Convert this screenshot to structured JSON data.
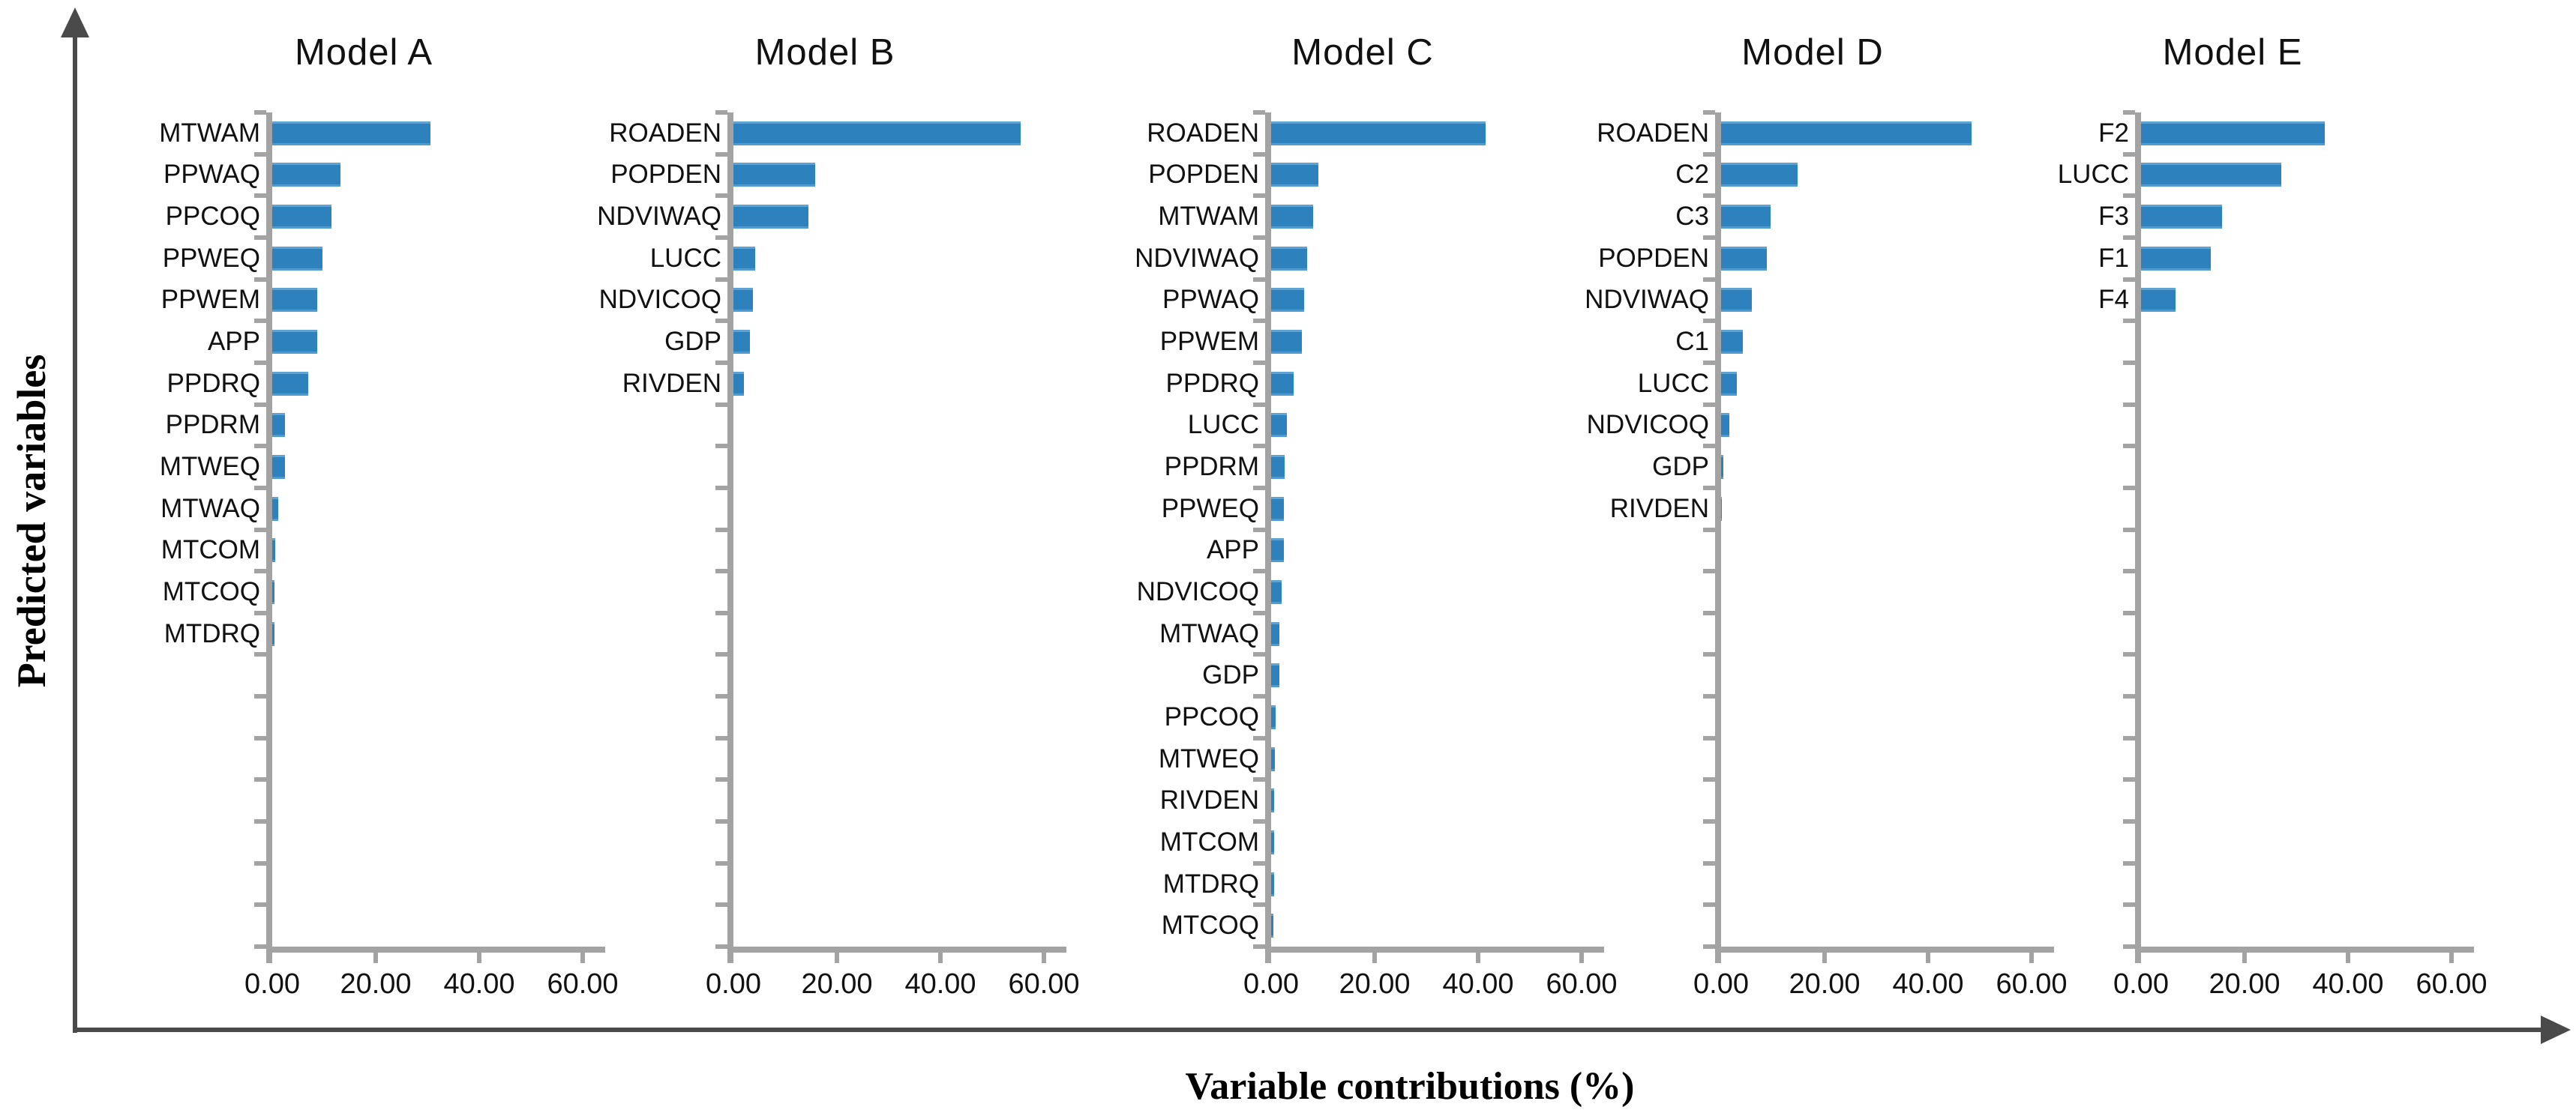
{
  "figure": {
    "y_axis_title": "Predicted variables",
    "x_axis_title": "Variable contributions (%)",
    "x_tick_labels": [
      "0.00",
      "20.00",
      "40.00",
      "60.00"
    ],
    "x_tick_values": [
      0,
      20,
      40,
      60
    ],
    "colors": {
      "bar_fill": "#2d81bd",
      "bar_edge_light": "#5ea3d4",
      "panel_axis_gray": "#a3a3a3",
      "arrow_gray": "#4a4a4a",
      "text": "#111111"
    }
  },
  "chart_data": [
    {
      "type": "bar",
      "orientation": "horizontal",
      "title": "Model A",
      "xlim": [
        0,
        60
      ],
      "grid": false,
      "categories": [
        "MTWAM",
        "PPWAQ",
        "PPCOQ",
        "PPWEQ",
        "PPWEM",
        "APP",
        "PPDRQ",
        "PPDRM",
        "MTWEQ",
        "MTWAQ",
        "MTCOM",
        "MTCOQ",
        "MTDRQ"
      ],
      "values": [
        30.6,
        13.2,
        11.4,
        9.7,
        8.7,
        8.7,
        6.9,
        2.5,
        2.5,
        1.2,
        0.6,
        0.5,
        0.5
      ]
    },
    {
      "type": "bar",
      "orientation": "horizontal",
      "title": "Model B",
      "xlim": [
        0,
        60
      ],
      "grid": false,
      "categories": [
        "ROADEN",
        "POPDEN",
        "NDVIWAQ",
        "LUCC",
        "NDVICOQ",
        "GDP",
        "RIVDEN"
      ],
      "values": [
        55.5,
        15.8,
        14.5,
        4.2,
        3.7,
        3.2,
        2.0
      ]
    },
    {
      "type": "bar",
      "orientation": "horizontal",
      "title": "Model C",
      "xlim": [
        0,
        60
      ],
      "grid": false,
      "categories": [
        "ROADEN",
        "POPDEN",
        "MTWAM",
        "NDVIWAQ",
        "PPWAQ",
        "PPWEM",
        "PPDRQ",
        "LUCC",
        "PPDRM",
        "PPWEQ",
        "APP",
        "NDVICOQ",
        "MTWAQ",
        "GDP",
        "PPCOQ",
        "MTWEQ",
        "RIVDEN",
        "MTCOM",
        "MTDRQ",
        "MTCOQ"
      ],
      "values": [
        41.5,
        9.2,
        8.1,
        7.0,
        6.4,
        5.9,
        4.3,
        3.1,
        2.6,
        2.5,
        2.5,
        2.0,
        1.6,
        1.6,
        0.8,
        0.7,
        0.6,
        0.6,
        0.6,
        0.5
      ]
    },
    {
      "type": "bar",
      "orientation": "horizontal",
      "title": "Model D",
      "xlim": [
        0,
        60
      ],
      "grid": false,
      "categories": [
        "ROADEN",
        "C2",
        "C3",
        "POPDEN",
        "NDVIWAQ",
        "C1",
        "LUCC",
        "NDVICOQ",
        "GDP",
        "RIVDEN"
      ],
      "values": [
        48.4,
        14.8,
        9.5,
        8.9,
        6.0,
        4.2,
        3.0,
        1.6,
        0.5,
        0.1
      ]
    },
    {
      "type": "bar",
      "orientation": "horizontal",
      "title": "Model E",
      "xlim": [
        0,
        60
      ],
      "grid": false,
      "categories": [
        "F2",
        "LUCC",
        "F3",
        "F1",
        "F4"
      ],
      "values": [
        35.5,
        27.1,
        15.6,
        13.5,
        6.7
      ]
    }
  ]
}
